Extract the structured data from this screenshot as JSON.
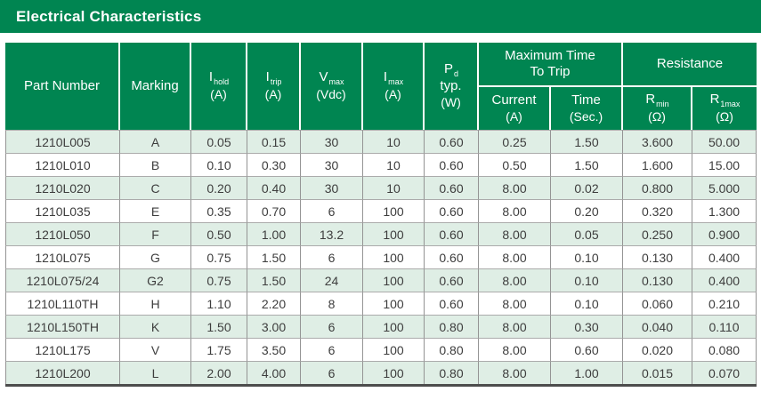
{
  "title": "Electrical Characteristics",
  "colors": {
    "brand_green": "#008551",
    "row_alt_green": "#dfeee5",
    "header_text": "#ffffff",
    "body_text": "#3d3d3d",
    "grid_gray": "#949494",
    "row_line": "#ababab",
    "bottom_rule": "#4d4d4d"
  },
  "table": {
    "group_headers": [
      {
        "line1": "Maximum Time",
        "line2": "To Trip"
      },
      {
        "label": "Resistance"
      }
    ],
    "columns": [
      {
        "label": "Part Number"
      },
      {
        "label": "Marking"
      },
      {
        "base": "I",
        "sub": "hold",
        "unit": "(A)"
      },
      {
        "base": "I",
        "sub": "trip",
        "unit": "(A)"
      },
      {
        "base": "V",
        "sub": "max",
        "unit": "(Vdc)"
      },
      {
        "base": "I",
        "sub": "max",
        "unit": "(A)"
      },
      {
        "base": "P",
        "sub": "d",
        "line2": "typ.",
        "unit": "(W)"
      },
      {
        "label": "Current",
        "unit": "(A)"
      },
      {
        "label": "Time",
        "unit": "(Sec.)"
      },
      {
        "base": "R",
        "sub": "min",
        "unit": "(Ω)"
      },
      {
        "base": "R",
        "sub": "1max",
        "unit": "(Ω)"
      }
    ],
    "rows": [
      [
        "1210L005",
        "A",
        "0.05",
        "0.15",
        "30",
        "10",
        "0.60",
        "0.25",
        "1.50",
        "3.600",
        "50.00"
      ],
      [
        "1210L010",
        "B",
        "0.10",
        "0.30",
        "30",
        "10",
        "0.60",
        "0.50",
        "1.50",
        "1.600",
        "15.00"
      ],
      [
        "1210L020",
        "C",
        "0.20",
        "0.40",
        "30",
        "10",
        "0.60",
        "8.00",
        "0.02",
        "0.800",
        "5.000"
      ],
      [
        "1210L035",
        "E",
        "0.35",
        "0.70",
        "6",
        "100",
        "0.60",
        "8.00",
        "0.20",
        "0.320",
        "1.300"
      ],
      [
        "1210L050",
        "F",
        "0.50",
        "1.00",
        "13.2",
        "100",
        "0.60",
        "8.00",
        "0.05",
        "0.250",
        "0.900"
      ],
      [
        "1210L075",
        "G",
        "0.75",
        "1.50",
        "6",
        "100",
        "0.60",
        "8.00",
        "0.10",
        "0.130",
        "0.400"
      ],
      [
        "1210L075/24",
        "G2",
        "0.75",
        "1.50",
        "24",
        "100",
        "0.60",
        "8.00",
        "0.10",
        "0.130",
        "0.400"
      ],
      [
        "1210L110TH",
        "H",
        "1.10",
        "2.20",
        "8",
        "100",
        "0.60",
        "8.00",
        "0.10",
        "0.060",
        "0.210"
      ],
      [
        "1210L150TH",
        "K",
        "1.50",
        "3.00",
        "6",
        "100",
        "0.80",
        "8.00",
        "0.30",
        "0.040",
        "0.110"
      ],
      [
        "1210L175",
        "V",
        "1.75",
        "3.50",
        "6",
        "100",
        "0.80",
        "8.00",
        "0.60",
        "0.020",
        "0.080"
      ],
      [
        "1210L200",
        "L",
        "2.00",
        "4.00",
        "6",
        "100",
        "0.80",
        "8.00",
        "1.00",
        "0.015",
        "0.070"
      ]
    ]
  }
}
